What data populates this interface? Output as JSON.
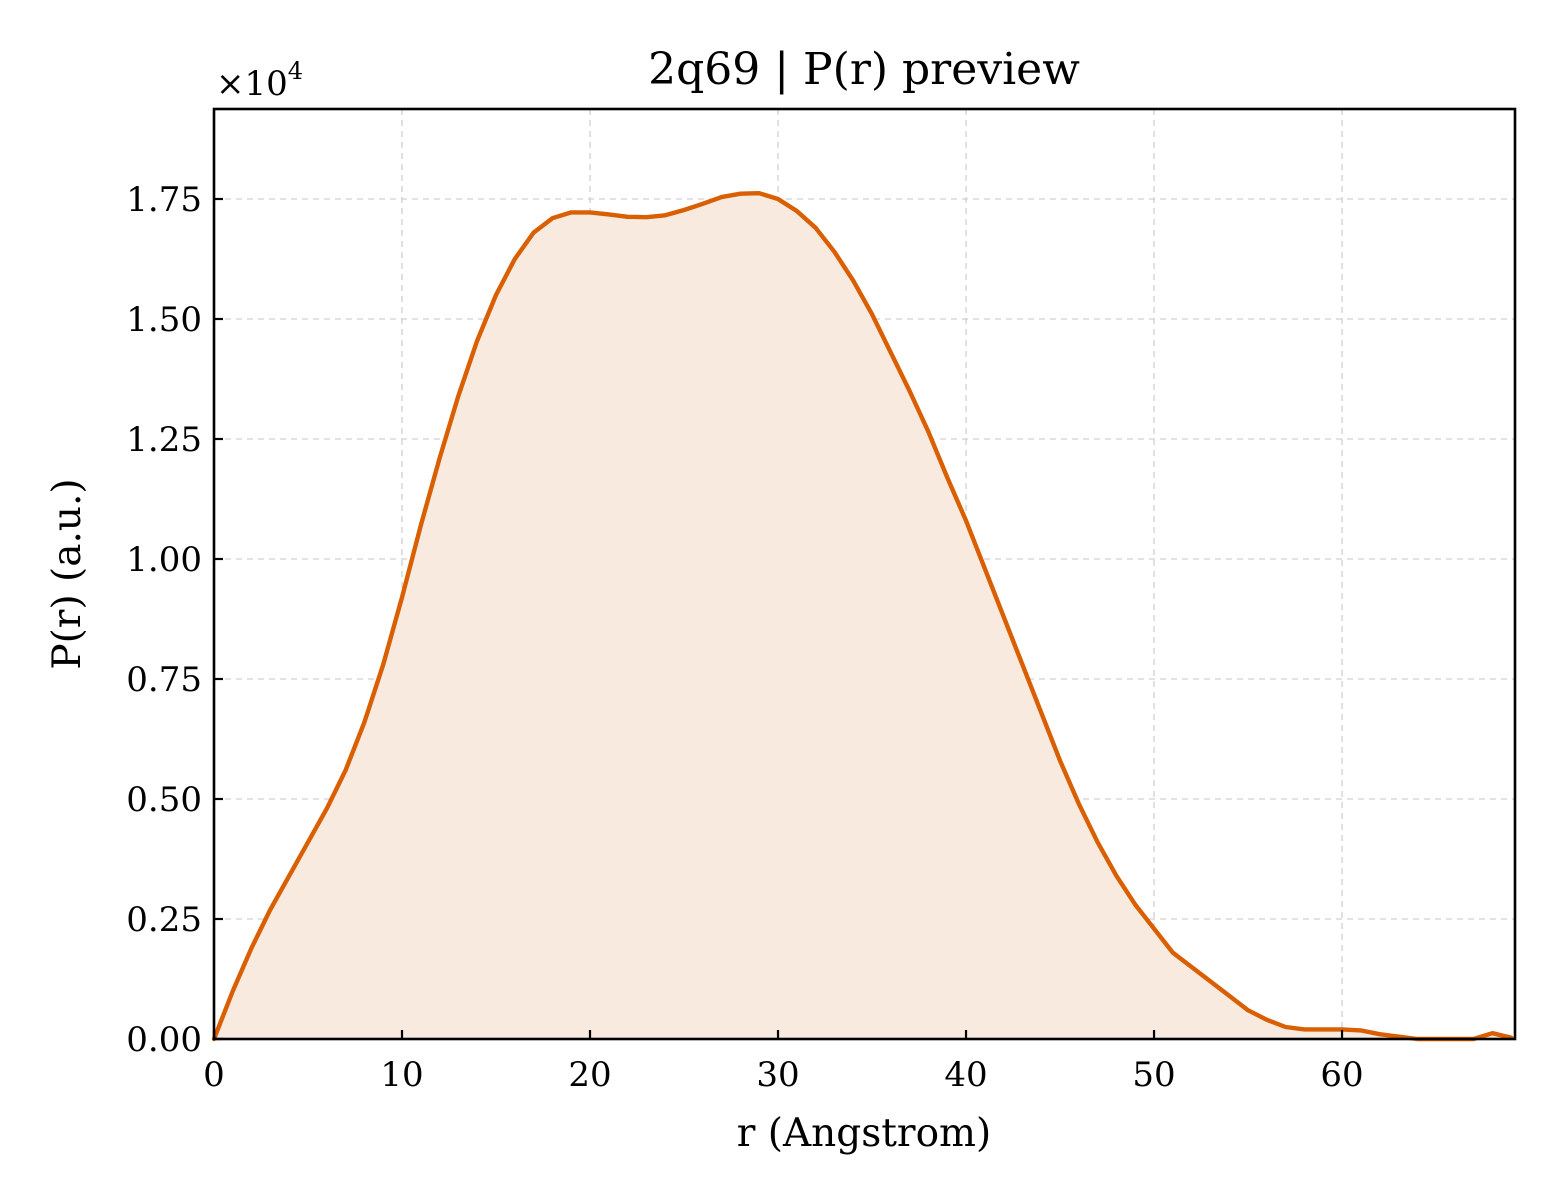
{
  "chart_data": {
    "type": "area",
    "title": "2q69 | P(r) preview",
    "xlabel": "r (Angstrom)",
    "ylabel": "P(r) (a.u.)",
    "y_multiplier_base": "×10",
    "y_multiplier_exp": "4",
    "xlim": [
      0,
      69.2
    ],
    "ylim": [
      0,
      1.9375
    ],
    "xticks": [
      0,
      10,
      20,
      30,
      40,
      50,
      60
    ],
    "xtick_labels": [
      "0",
      "10",
      "20",
      "30",
      "40",
      "50",
      "60"
    ],
    "yticks": [
      0,
      0.25,
      0.5,
      0.75,
      1.0,
      1.25,
      1.5,
      1.75
    ],
    "ytick_labels": [
      "0.00",
      "0.25",
      "0.50",
      "0.75",
      "1.00",
      "1.25",
      "1.50",
      "1.75"
    ],
    "grid": true,
    "line_color": "#d95f02",
    "fill_color": "#f8eadf",
    "series": [
      {
        "x": [
          0,
          1,
          2,
          3,
          4,
          5,
          6,
          7,
          8,
          9,
          10,
          11,
          12,
          13,
          14,
          15,
          16,
          17,
          18,
          19,
          20,
          21,
          22,
          23,
          24,
          25,
          26,
          27,
          28,
          29,
          30,
          31,
          32,
          33,
          34,
          35,
          36,
          37,
          38,
          39,
          40,
          41,
          42,
          43,
          44,
          45,
          46,
          47,
          48,
          49,
          50,
          51,
          52,
          53,
          54,
          55,
          56,
          57,
          58,
          59,
          60,
          61,
          62,
          63,
          64,
          65,
          66,
          67,
          68,
          69
        ],
        "values": [
          0.0,
          0.1,
          0.19,
          0.27,
          0.34,
          0.41,
          0.48,
          0.56,
          0.66,
          0.78,
          0.92,
          1.07,
          1.21,
          1.34,
          1.455,
          1.55,
          1.625,
          1.68,
          1.71,
          1.722,
          1.722,
          1.718,
          1.713,
          1.712,
          1.716,
          1.727,
          1.74,
          1.754,
          1.761,
          1.762,
          1.75,
          1.725,
          1.69,
          1.64,
          1.58,
          1.51,
          1.43,
          1.35,
          1.265,
          1.17,
          1.08,
          0.98,
          0.88,
          0.78,
          0.68,
          0.58,
          0.49,
          0.41,
          0.34,
          0.28,
          0.23,
          0.18,
          0.15,
          0.12,
          0.09,
          0.06,
          0.04,
          0.025,
          0.02,
          0.02,
          0.02,
          0.018,
          0.01,
          0.005,
          0.0,
          0.0,
          0.0,
          0.0,
          0.012,
          0.003
        ]
      }
    ]
  }
}
